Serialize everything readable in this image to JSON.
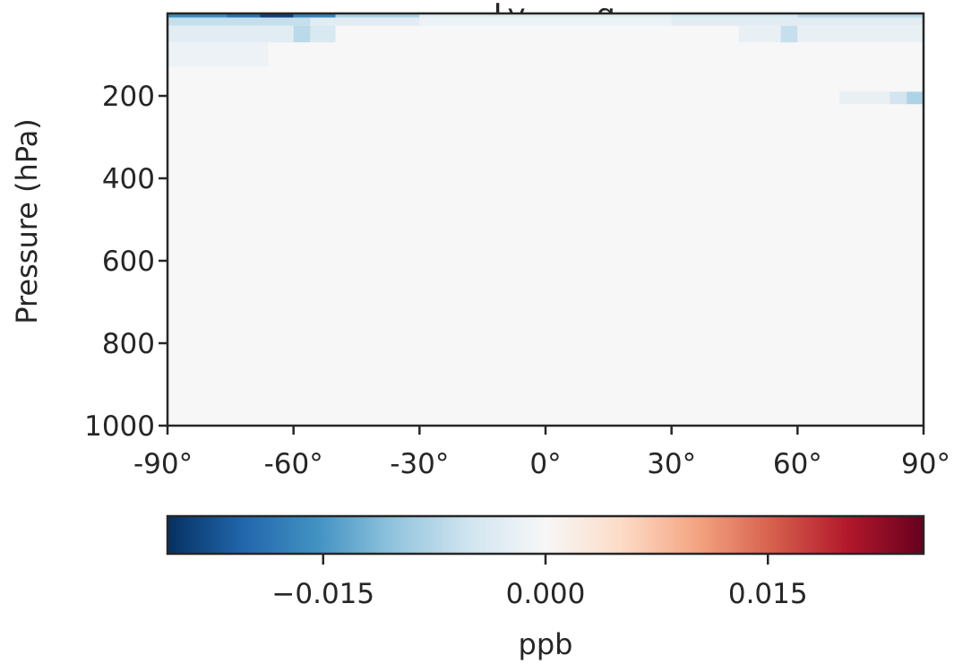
{
  "chart_data": {
    "type": "heatmap",
    "title": "…, Ly… …g…",
    "xlabel": "",
    "ylabel": "Pressure (hPa)",
    "xlim": [
      -90,
      90
    ],
    "ylim": [
      1000,
      0
    ],
    "y_inverted": true,
    "x_ticks": [
      -90,
      -60,
      -30,
      0,
      30,
      60,
      90
    ],
    "x_tick_labels": [
      "-90°",
      "-60°",
      "-30°",
      "0°",
      "30°",
      "60°",
      "90°"
    ],
    "y_ticks": [
      200,
      400,
      600,
      800,
      1000
    ],
    "y_tick_labels": [
      "200",
      "400",
      "600",
      "800",
      "1000"
    ],
    "value_range": [
      -0.0255,
      0.0255
    ],
    "colormap": [
      "#053061",
      "#2166ac",
      "#4393c3",
      "#92c5de",
      "#d1e5f0",
      "#f7f7f7",
      "#fddbc7",
      "#f4a582",
      "#d6604d",
      "#b2182b",
      "#67001f"
    ],
    "background_value": 0.0,
    "cells": [
      {
        "lat": [
          -90,
          -76
        ],
        "p": [
          0,
          10
        ],
        "value": -0.016
      },
      {
        "lat": [
          -76,
          -68
        ],
        "p": [
          0,
          10
        ],
        "value": -0.019
      },
      {
        "lat": [
          -68,
          -60
        ],
        "p": [
          0,
          10
        ],
        "value": -0.024
      },
      {
        "lat": [
          -60,
          -50
        ],
        "p": [
          0,
          10
        ],
        "value": -0.017
      },
      {
        "lat": [
          -50,
          -30
        ],
        "p": [
          0,
          10
        ],
        "value": -0.008
      },
      {
        "lat": [
          -30,
          30
        ],
        "p": [
          0,
          10
        ],
        "value": -0.003
      },
      {
        "lat": [
          30,
          60
        ],
        "p": [
          0,
          10
        ],
        "value": -0.004
      },
      {
        "lat": [
          60,
          90
        ],
        "p": [
          0,
          10
        ],
        "value": -0.007
      },
      {
        "lat": [
          -90,
          -56
        ],
        "p": [
          10,
          30
        ],
        "value": -0.006
      },
      {
        "lat": [
          -56,
          -30
        ],
        "p": [
          10,
          30
        ],
        "value": -0.003
      },
      {
        "lat": [
          -30,
          30
        ],
        "p": [
          10,
          30
        ],
        "value": -0.0015
      },
      {
        "lat": [
          30,
          90
        ],
        "p": [
          10,
          30
        ],
        "value": -0.003
      },
      {
        "lat": [
          -90,
          -60
        ],
        "p": [
          30,
          70
        ],
        "value": -0.003
      },
      {
        "lat": [
          -60,
          -56
        ],
        "p": [
          30,
          70
        ],
        "value": -0.007
      },
      {
        "lat": [
          -56,
          -50
        ],
        "p": [
          30,
          70
        ],
        "value": -0.004
      },
      {
        "lat": [
          46,
          56
        ],
        "p": [
          30,
          70
        ],
        "value": -0.002
      },
      {
        "lat": [
          56,
          60
        ],
        "p": [
          30,
          70
        ],
        "value": -0.006
      },
      {
        "lat": [
          60,
          90
        ],
        "p": [
          30,
          70
        ],
        "value": -0.002
      },
      {
        "lat": [
          -90,
          -66
        ],
        "p": [
          70,
          130
        ],
        "value": -0.0015
      },
      {
        "lat": [
          70,
          82
        ],
        "p": [
          190,
          220
        ],
        "value": -0.002
      },
      {
        "lat": [
          82,
          86
        ],
        "p": [
          190,
          220
        ],
        "value": -0.005
      },
      {
        "lat": [
          86,
          90
        ],
        "p": [
          190,
          220
        ],
        "value": -0.008
      }
    ]
  },
  "colorbar": {
    "label": "ppb",
    "ticks": [
      -0.015,
      0.0,
      0.015
    ],
    "tick_labels": [
      "−0.015",
      "0.000",
      "0.015"
    ]
  }
}
